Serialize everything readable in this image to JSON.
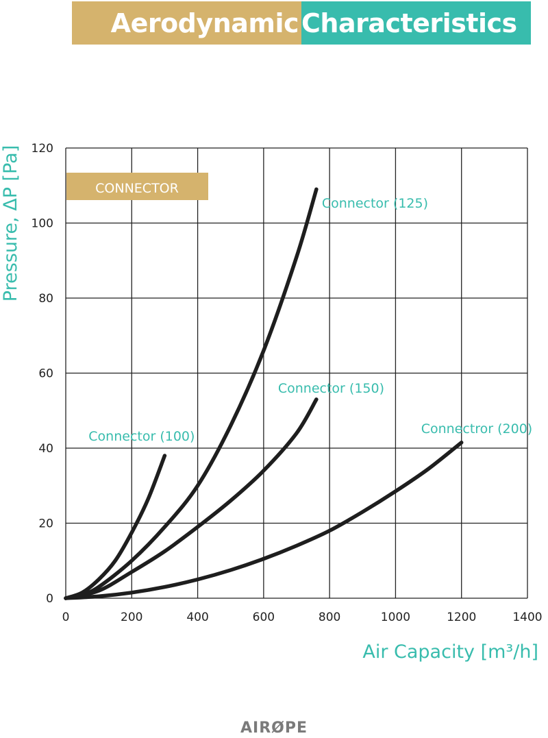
{
  "title": {
    "part1": "Aerodynamic",
    "part2": "Characteristics"
  },
  "colors": {
    "gold": "#d5b36d",
    "teal": "#38bcad",
    "curve": "#1e1e1e",
    "grid": "#222222"
  },
  "badge": "CONNECTOR",
  "logo": "AIRØPE",
  "chart_data": {
    "type": "line",
    "title": "",
    "xlabel": "Air Capacity [m³/h]",
    "ylabel": "Pressure, ΔP [Pa]",
    "xlim": [
      0,
      1400
    ],
    "ylim": [
      0,
      120
    ],
    "xticks": [
      0,
      200,
      400,
      600,
      800,
      1000,
      1200,
      1400
    ],
    "yticks": [
      0,
      20,
      40,
      60,
      80,
      100,
      120
    ],
    "grid": true,
    "series": [
      {
        "name": "Connector (100)",
        "x": [
          0,
          50,
          100,
          150,
          200,
          250,
          300
        ],
        "y": [
          0,
          1.5,
          5,
          10,
          17.5,
          26.5,
          38
        ]
      },
      {
        "name": "Connector (125)",
        "x": [
          0,
          50,
          100,
          200,
          300,
          400,
          500,
          600,
          700,
          760
        ],
        "y": [
          0,
          1,
          3,
          10,
          19,
          30,
          46,
          66,
          91,
          109
        ]
      },
      {
        "name": "Connector (150)",
        "x": [
          0,
          100,
          200,
          300,
          400,
          500,
          600,
          700,
          760
        ],
        "y": [
          0,
          2,
          7,
          12.5,
          19,
          26,
          34,
          44,
          53
        ]
      },
      {
        "name": "Connectror (200)",
        "x": [
          0,
          100,
          200,
          300,
          400,
          500,
          600,
          700,
          800,
          900,
          1000,
          1100,
          1200
        ],
        "y": [
          0,
          0.5,
          1.5,
          3,
          5,
          7.5,
          10.5,
          14,
          18,
          23,
          28.5,
          34.5,
          41.5
        ]
      }
    ]
  }
}
